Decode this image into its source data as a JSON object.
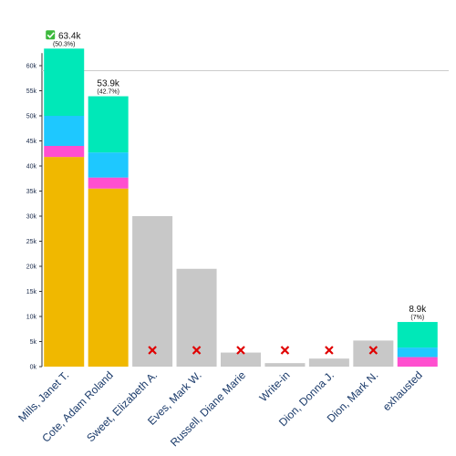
{
  "chart_data": {
    "type": "bar",
    "stacked": true,
    "ylim": [
      0,
      70000
    ],
    "yticks": [
      {
        "value": 0,
        "label": "0k"
      },
      {
        "value": 5000,
        "label": "5k"
      },
      {
        "value": 10000,
        "label": "10k"
      },
      {
        "value": 15000,
        "label": "15k"
      },
      {
        "value": 20000,
        "label": "20k"
      },
      {
        "value": 25000,
        "label": "25k"
      },
      {
        "value": 30000,
        "label": "30k"
      },
      {
        "value": 35000,
        "label": "35k"
      },
      {
        "value": 40000,
        "label": "40k"
      },
      {
        "value": 45000,
        "label": "45k"
      },
      {
        "value": 50000,
        "label": "50k"
      },
      {
        "value": 55000,
        "label": "55k"
      },
      {
        "value": 60000,
        "label": "60k"
      }
    ],
    "threshold": 59000,
    "colors": {
      "base": "#f0b800",
      "pink": "#ff4fcf",
      "blue": "#1ec8ff",
      "teal": "#00e8b8",
      "eliminated": "#c8c8c8",
      "cross": "#e00000",
      "winner_check": "#3cb83c",
      "threshold_line": "#cccccc"
    },
    "categories": [
      {
        "name": "Mills, Janet T.",
        "status": "winner",
        "total_label": "63.4k",
        "pct_label": "(50.3%)",
        "segments": [
          {
            "color": "base",
            "value": 41800
          },
          {
            "color": "pink",
            "value": 2200
          },
          {
            "color": "blue",
            "value": 6000
          },
          {
            "color": "teal",
            "value": 13400
          }
        ]
      },
      {
        "name": "Cote, Adam Roland",
        "status": "active",
        "total_label": "53.9k",
        "pct_label": "(42.7%)",
        "segments": [
          {
            "color": "base",
            "value": 35500
          },
          {
            "color": "pink",
            "value": 2200
          },
          {
            "color": "blue",
            "value": 5000
          },
          {
            "color": "teal",
            "value": 11200
          }
        ]
      },
      {
        "name": "Sweet, Elizabeth A.",
        "status": "eliminated",
        "segments": [
          {
            "color": "eliminated",
            "value": 30000
          }
        ]
      },
      {
        "name": "Eves, Mark W.",
        "status": "eliminated",
        "segments": [
          {
            "color": "eliminated",
            "value": 19500
          }
        ]
      },
      {
        "name": "Russell, Diane Marie",
        "status": "eliminated",
        "segments": [
          {
            "color": "eliminated",
            "value": 2800
          }
        ]
      },
      {
        "name": "Write-in",
        "status": "eliminated",
        "segments": [
          {
            "color": "eliminated",
            "value": 700
          }
        ]
      },
      {
        "name": "Dion, Donna J.",
        "status": "eliminated",
        "segments": [
          {
            "color": "eliminated",
            "value": 1600
          }
        ]
      },
      {
        "name": "Dion, Mark N.",
        "status": "eliminated",
        "segments": [
          {
            "color": "eliminated",
            "value": 5200
          }
        ]
      },
      {
        "name": "exhausted",
        "status": "exhausted",
        "total_label": "8.9k",
        "pct_label": "(7%)",
        "segments": [
          {
            "color": "pink",
            "value": 1900
          },
          {
            "color": "blue",
            "value": 1900
          },
          {
            "color": "teal",
            "value": 5100
          }
        ]
      }
    ]
  }
}
